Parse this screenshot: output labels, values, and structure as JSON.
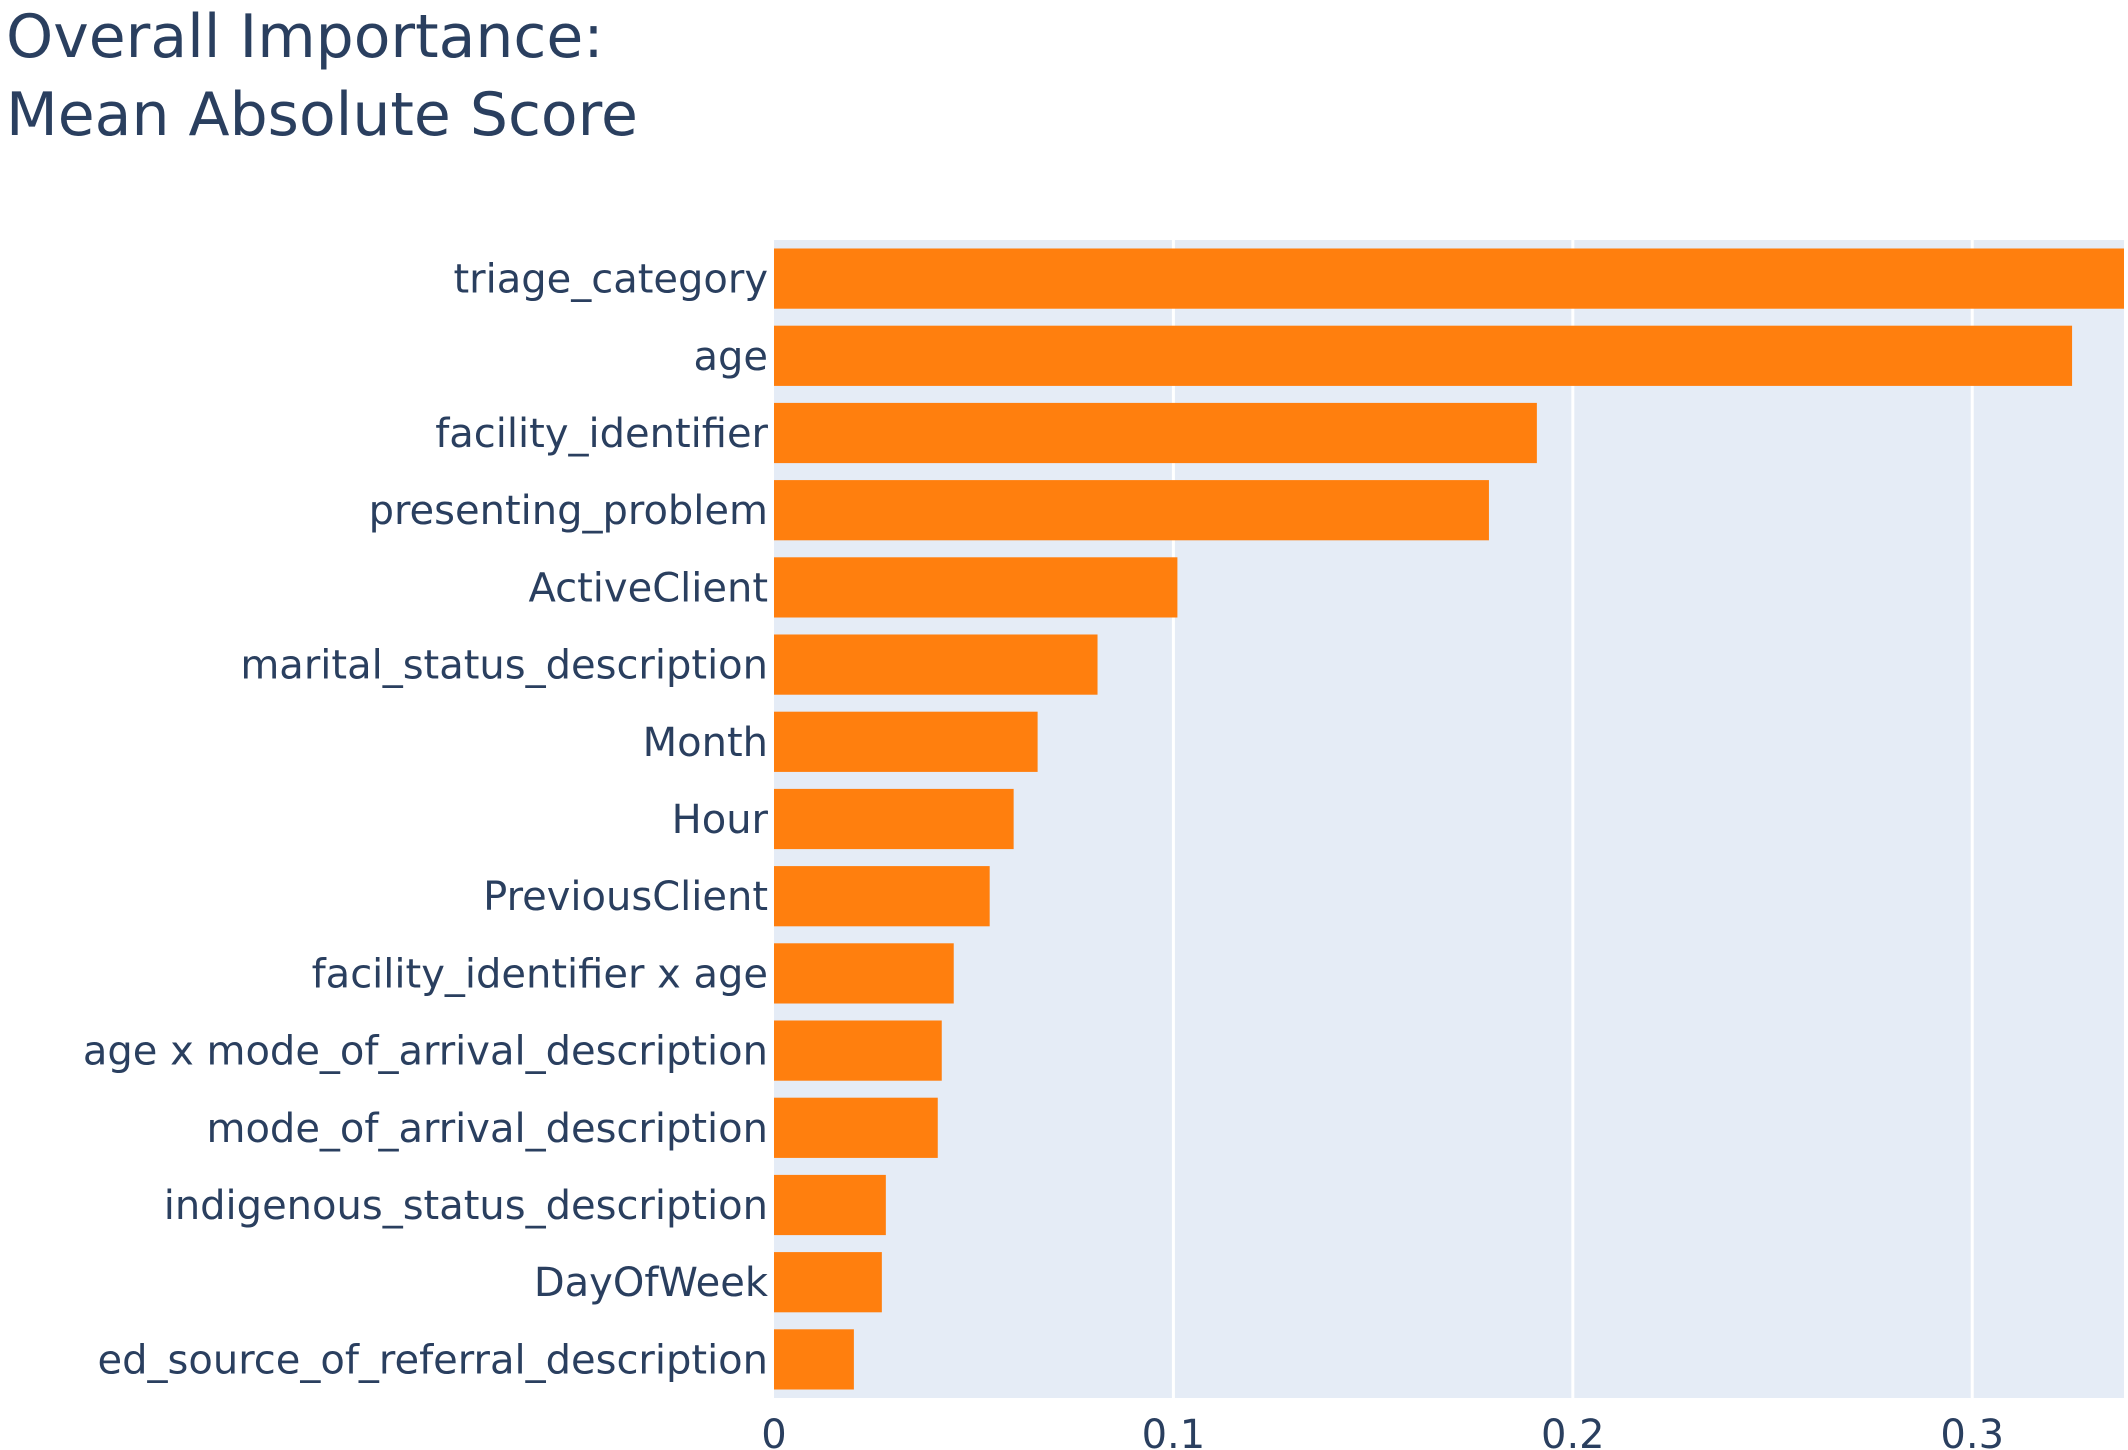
{
  "chart_data": {
    "type": "bar",
    "orientation": "horizontal",
    "title_lines": [
      "Overall Importance:",
      "Mean Absolute Score"
    ],
    "categories": [
      "triage_category",
      "age",
      "facility_identifier",
      "presenting_problem",
      "ActiveClient",
      "marital_status_description",
      "Month",
      "Hour",
      "PreviousClient",
      "facility_identifier x age",
      "age x mode_of_arrival_description",
      "mode_of_arrival_description",
      "indigenous_status_description",
      "DayOfWeek",
      "ed_source_of_referral_description"
    ],
    "values": [
      0.338,
      0.325,
      0.191,
      0.179,
      0.101,
      0.081,
      0.066,
      0.06,
      0.054,
      0.045,
      0.042,
      0.041,
      0.028,
      0.027,
      0.02
    ],
    "xlim": [
      0,
      0.338
    ],
    "xticks": [
      0,
      0.1,
      0.2,
      0.3
    ],
    "xtick_labels": [
      "0",
      "0.1",
      "0.2",
      "0.3"
    ],
    "xlabel": "",
    "ylabel": "",
    "grid": true,
    "legend": "none",
    "colors": {
      "bar": "#ff7f0e",
      "plot_background": "#e5ecf6",
      "grid": "#ffffff",
      "text": "#2a3f5f"
    }
  }
}
